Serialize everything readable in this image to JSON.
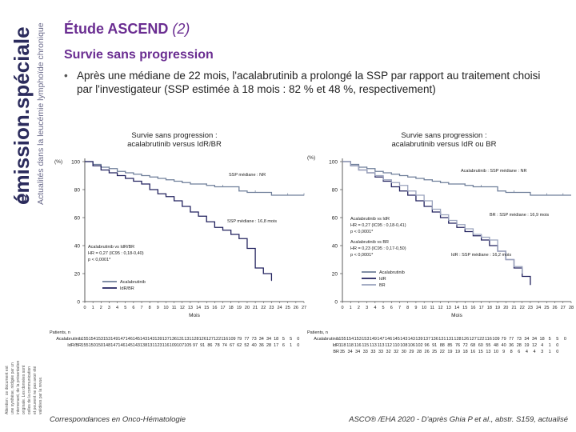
{
  "sidebar": {
    "brand_main": "émission.spéciale",
    "brand_sub": "Actualités dans la leucémie lymphoïde chronique",
    "disclaimer": [
      "Attention : ce document est",
      "une synthèse, rédigée par un",
      "intervenant, de la présentation",
      "originale. Les données sont",
      "celles de la communication",
      "et peuvent ne pas avoir été",
      "validées par la revue."
    ]
  },
  "header": {
    "title": "Étude ASCEND",
    "title_suffix": "(2)",
    "subtitle": "Survie sans progression"
  },
  "body": {
    "bullet_marker": "•",
    "bullet_text": "Après une médiane de 22 mois, l'acalabrutinib a prolongé la SSP par rapport au traitement choisi par l'investigateur (SSP estimée à 18 mois : 82 % et 48 %, respectivement)"
  },
  "colors": {
    "title": "#6a2d91",
    "acalabrutinib": "#6f7f9a",
    "idr": "#23235f",
    "br": "#9aa3bd"
  },
  "footer": {
    "left": "Correspondances en Onco-Hématologie",
    "right": "ASCO® /EHA 2020 - D'après Ghia P et al., abstr. S159, actualisé"
  },
  "chart_data": [
    {
      "type": "line",
      "title_lines": [
        "Survie sans progression :",
        "acalabrutinib versus IdR/BR"
      ],
      "ylabel": "(%)",
      "xlabel": "Mois",
      "ylim": [
        0,
        100
      ],
      "xlim": [
        0,
        27
      ],
      "yticks": [
        "0",
        "20",
        "40",
        "60",
        "80",
        "100"
      ],
      "xticks": [
        "0",
        "1",
        "2",
        "3",
        "4",
        "5",
        "6",
        "7",
        "8",
        "9",
        "10",
        "11",
        "12",
        "13",
        "14",
        "15",
        "16",
        "17",
        "18",
        "19",
        "20",
        "21",
        "22",
        "23",
        "24",
        "25",
        "26",
        "27"
      ],
      "series": [
        {
          "name": "Acalabrutinib",
          "color": "#6f7f9a",
          "x": [
            0,
            1,
            2,
            3,
            4,
            5,
            6,
            7,
            8,
            9,
            10,
            11,
            12,
            13,
            14,
            15,
            16,
            17,
            18,
            19,
            20,
            21,
            22,
            23,
            24,
            25,
            26,
            27
          ],
          "y": [
            100,
            98,
            96,
            95,
            93,
            92,
            91,
            90,
            89,
            88,
            87,
            86,
            85,
            84,
            84,
            83,
            82,
            82,
            82,
            79,
            78,
            78,
            78,
            76,
            76,
            76,
            76,
            76
          ]
        },
        {
          "name": "IdR/BR",
          "color": "#23235f",
          "x": [
            0,
            1,
            2,
            3,
            4,
            5,
            6,
            7,
            8,
            9,
            10,
            11,
            12,
            13,
            14,
            15,
            16,
            17,
            18,
            19,
            20,
            21,
            22,
            23
          ],
          "y": [
            100,
            97,
            94,
            92,
            90,
            88,
            86,
            84,
            80,
            77,
            75,
            72,
            68,
            64,
            61,
            57,
            53,
            51,
            48,
            45,
            38,
            24,
            20,
            15
          ]
        }
      ],
      "annotations": [
        "SSP médiane : NR",
        "SSP médiane : 16,8 mois",
        "Acalabrutinib vs IdR/BR",
        "HR = 0,27 (IC95 : 0,18-0,40)",
        "p < 0,0001*"
      ],
      "risk_table": {
        "header": "Patients, n",
        "rows": [
          {
            "label": "Acalabrutinib",
            "values": [
              "155",
              "154",
              "153",
              "153",
              "149",
              "147",
              "146",
              "145",
              "143",
              "143",
              "139",
              "137",
              "136",
              "131",
              "131",
              "128",
              "126",
              "127",
              "122",
              "116",
              "109",
              "79",
              "77",
              "73",
              "34",
              "34",
              "18",
              "5",
              "5",
              "0"
            ]
          },
          {
            "label": "IdR/BR",
            "values": [
              "155",
              "150",
              "150",
              "148",
              "147",
              "146",
              "145",
              "143",
              "138",
              "131",
              "123",
              "116",
              "109",
              "107",
              "105",
              "97",
              "91",
              "86",
              "78",
              "74",
              "67",
              "62",
              "52",
              "40",
              "36",
              "28",
              "17",
              "6",
              "1",
              "0"
            ]
          }
        ]
      }
    },
    {
      "type": "line",
      "title_lines": [
        "Survie sans progression :",
        "acalabrutinib versus IdR ou BR"
      ],
      "ylabel": "(%)",
      "xlabel": "Mois",
      "ylim": [
        0,
        100
      ],
      "xlim": [
        0,
        28
      ],
      "yticks": [
        "0",
        "20",
        "40",
        "60",
        "80",
        "100"
      ],
      "xticks": [
        "0",
        "1",
        "2",
        "3",
        "4",
        "5",
        "6",
        "7",
        "8",
        "9",
        "10",
        "11",
        "12",
        "13",
        "14",
        "15",
        "16",
        "17",
        "18",
        "19",
        "20",
        "21",
        "22",
        "23",
        "24",
        "25",
        "26",
        "27",
        "28"
      ],
      "series": [
        {
          "name": "Acalabrutinib",
          "color": "#6f7f9a",
          "x": [
            0,
            1,
            2,
            3,
            4,
            5,
            6,
            7,
            8,
            9,
            10,
            11,
            12,
            13,
            14,
            15,
            16,
            17,
            18,
            19,
            20,
            21,
            22,
            23,
            24,
            25,
            26,
            27,
            28
          ],
          "y": [
            100,
            98,
            96,
            95,
            93,
            92,
            91,
            90,
            89,
            88,
            87,
            86,
            85,
            84,
            84,
            83,
            82,
            82,
            82,
            79,
            78,
            78,
            78,
            76,
            76,
            76,
            76,
            76,
            76
          ]
        },
        {
          "name": "IdR",
          "color": "#23235f",
          "x": [
            0,
            1,
            2,
            3,
            4,
            5,
            6,
            7,
            8,
            9,
            10,
            11,
            12,
            13,
            14,
            15,
            16,
            17,
            18,
            19,
            20,
            21,
            22,
            23
          ],
          "y": [
            100,
            97,
            94,
            92,
            89,
            86,
            82,
            79,
            76,
            72,
            68,
            64,
            60,
            56,
            53,
            50,
            47,
            44,
            40,
            36,
            30,
            24,
            18,
            12
          ]
        },
        {
          "name": "BR",
          "color": "#9aa3bd",
          "x": [
            0,
            1,
            2,
            3,
            4,
            5,
            6,
            7,
            8,
            9,
            10,
            11,
            12,
            13,
            14,
            15,
            16,
            17,
            18,
            19,
            20,
            21,
            22
          ],
          "y": [
            100,
            97,
            94,
            92,
            90,
            87,
            85,
            83,
            79,
            76,
            72,
            66,
            62,
            58,
            55,
            52,
            48,
            46,
            44,
            36,
            30,
            25,
            20
          ]
        }
      ],
      "annotations": [
        "Acalabrutinib : SSP médiane : NR",
        "BR : SSP médiane : 16,9 mois",
        "IdR : SSP médiane : 16,2 mois",
        "Acalabrutinib vs IdR",
        "HR = 0,27 (IC95 : 0,18-0,41)",
        "p < 0,0001*",
        "Acalabrutinib vs BR",
        "HR = 0,23 (IC95 : 0,17-0,50)",
        "p < 0,0001*"
      ],
      "risk_table": {
        "header": "Patients, n",
        "rows": [
          {
            "label": "Acalabrutinib",
            "values": [
              "155",
              "154",
              "153",
              "153",
              "149",
              "147",
              "146",
              "145",
              "143",
              "143",
              "139",
              "137",
              "136",
              "131",
              "131",
              "128",
              "126",
              "127",
              "122",
              "116",
              "109",
              "79",
              "77",
              "73",
              "34",
              "34",
              "18",
              "5",
              "5",
              "0"
            ]
          },
          {
            "label": "IdR",
            "values": [
              "118",
              "118",
              "116",
              "115",
              "113",
              "113",
              "112",
              "110",
              "108",
              "106",
              "102",
              "96",
              "91",
              "88",
              "85",
              "76",
              "72",
              "68",
              "60",
              "55",
              "48",
              "40",
              "36",
              "28",
              "19",
              "12",
              "4",
              "1",
              "0"
            ]
          },
          {
            "label": "BR",
            "values": [
              "35",
              "34",
              "34",
              "33",
              "33",
              "33",
              "32",
              "32",
              "30",
              "29",
              "28",
              "26",
              "25",
              "22",
              "19",
              "19",
              "18",
              "16",
              "15",
              "13",
              "10",
              "9",
              "8",
              "6",
              "4",
              "4",
              "3",
              "1",
              "0"
            ]
          }
        ]
      }
    }
  ]
}
